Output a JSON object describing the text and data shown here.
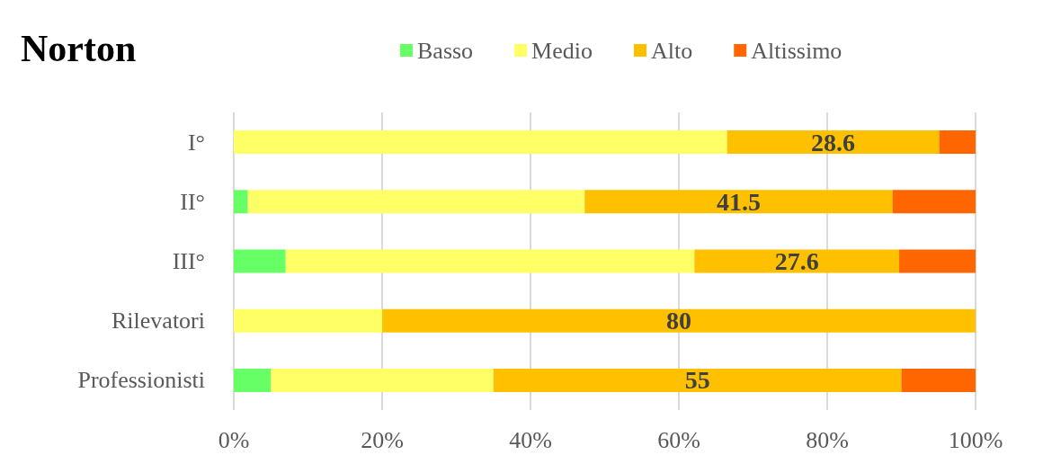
{
  "chart_data": {
    "type": "bar",
    "orientation": "horizontal",
    "stacked": true,
    "title": "Norton",
    "categories": [
      "I°",
      "II°",
      "III°",
      "Rilevatori",
      "Professionisti"
    ],
    "series": [
      {
        "name": "Basso",
        "color": "#66ff66",
        "values": [
          0,
          1.9,
          7.0,
          0,
          5
        ]
      },
      {
        "name": "Medio",
        "color": "#ffff66",
        "values": [
          66.5,
          45.4,
          55.1,
          20,
          30
        ]
      },
      {
        "name": "Alto",
        "color": "#ffc000",
        "values": [
          28.6,
          41.5,
          27.6,
          80,
          55
        ],
        "value_labels": [
          "28.6",
          "41.5",
          "27.6",
          "80",
          "55"
        ]
      },
      {
        "name": "Altissimo",
        "color": "#ff6600",
        "values": [
          4.9,
          11.2,
          10.3,
          0,
          10
        ]
      }
    ],
    "xlim": [
      0,
      100
    ],
    "xticks": [
      {
        "value": 0,
        "label": "0%"
      },
      {
        "value": 20,
        "label": "20%"
      },
      {
        "value": 40,
        "label": "40%"
      },
      {
        "value": 60,
        "label": "60%"
      },
      {
        "value": 80,
        "label": "80%"
      },
      {
        "value": 100,
        "label": "100%"
      }
    ],
    "grid": "x",
    "legend": "top"
  }
}
